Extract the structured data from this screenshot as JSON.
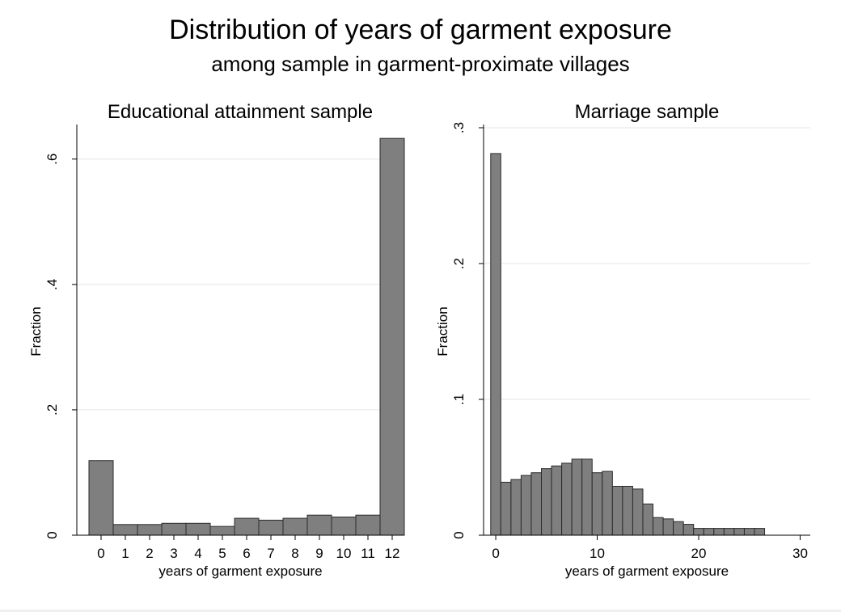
{
  "title": "Distribution of years of garment exposure",
  "subtitle": "among sample in garment-proximate villages",
  "colors": {
    "bar_fill": "#7f7f7f",
    "bar_stroke": "#2b2b2b",
    "grid": "#e6e6e6",
    "axis": "#000000"
  },
  "chart_data": [
    {
      "type": "bar",
      "title": "Educational attainment sample",
      "xlabel": "years of garment exposure",
      "ylabel": "Fraction",
      "grid": true,
      "xlim": [
        -1,
        12.5
      ],
      "ylim": [
        0,
        0.65
      ],
      "xticks": [
        0,
        1,
        2,
        3,
        4,
        5,
        6,
        7,
        8,
        9,
        10,
        11,
        12
      ],
      "xtick_labels": [
        "0",
        "1",
        "2",
        "3",
        "4",
        "5",
        "6",
        "7",
        "8",
        "9",
        "10",
        "11",
        "12"
      ],
      "yticks": [
        0,
        0.2,
        0.4,
        0.6
      ],
      "ytick_labels": [
        "0",
        ".2",
        ".4",
        ".6"
      ],
      "bin_width": 1,
      "bins": [
        {
          "x": 0,
          "y": 0.119
        },
        {
          "x": 1,
          "y": 0.017
        },
        {
          "x": 2,
          "y": 0.017
        },
        {
          "x": 3,
          "y": 0.019
        },
        {
          "x": 4,
          "y": 0.019
        },
        {
          "x": 5,
          "y": 0.014
        },
        {
          "x": 6,
          "y": 0.027
        },
        {
          "x": 7,
          "y": 0.024
        },
        {
          "x": 8,
          "y": 0.027
        },
        {
          "x": 9,
          "y": 0.032
        },
        {
          "x": 10,
          "y": 0.029
        },
        {
          "x": 11,
          "y": 0.032
        },
        {
          "x": 12,
          "y": 0.633
        }
      ]
    },
    {
      "type": "bar",
      "title": "Marriage sample",
      "xlabel": "years of garment exposure",
      "ylabel": "Fraction",
      "grid": true,
      "xlim": [
        -1.2,
        31
      ],
      "ylim": [
        0,
        0.3
      ],
      "xticks": [
        0,
        10,
        20,
        30
      ],
      "xtick_labels": [
        "0",
        "10",
        "20",
        "30"
      ],
      "yticks": [
        0,
        0.1,
        0.2,
        0.3
      ],
      "ytick_labels": [
        "0",
        ".1",
        ".2",
        ".3"
      ],
      "bin_width": 1,
      "bins": [
        {
          "x": 0,
          "y": 0.281
        },
        {
          "x": 1,
          "y": 0.039
        },
        {
          "x": 2,
          "y": 0.041
        },
        {
          "x": 3,
          "y": 0.044
        },
        {
          "x": 4,
          "y": 0.046
        },
        {
          "x": 5,
          "y": 0.049
        },
        {
          "x": 6,
          "y": 0.051
        },
        {
          "x": 7,
          "y": 0.053
        },
        {
          "x": 8,
          "y": 0.056
        },
        {
          "x": 9,
          "y": 0.056
        },
        {
          "x": 10,
          "y": 0.046
        },
        {
          "x": 11,
          "y": 0.047
        },
        {
          "x": 12,
          "y": 0.036
        },
        {
          "x": 13,
          "y": 0.036
        },
        {
          "x": 14,
          "y": 0.034
        },
        {
          "x": 15,
          "y": 0.023
        },
        {
          "x": 16,
          "y": 0.013
        },
        {
          "x": 17,
          "y": 0.012
        },
        {
          "x": 18,
          "y": 0.01
        },
        {
          "x": 19,
          "y": 0.008
        },
        {
          "x": 20,
          "y": 0.005
        },
        {
          "x": 21,
          "y": 0.005
        },
        {
          "x": 22,
          "y": 0.005
        },
        {
          "x": 23,
          "y": 0.005
        },
        {
          "x": 24,
          "y": 0.005
        },
        {
          "x": 25,
          "y": 0.005
        },
        {
          "x": 26,
          "y": 0.005
        }
      ]
    }
  ]
}
